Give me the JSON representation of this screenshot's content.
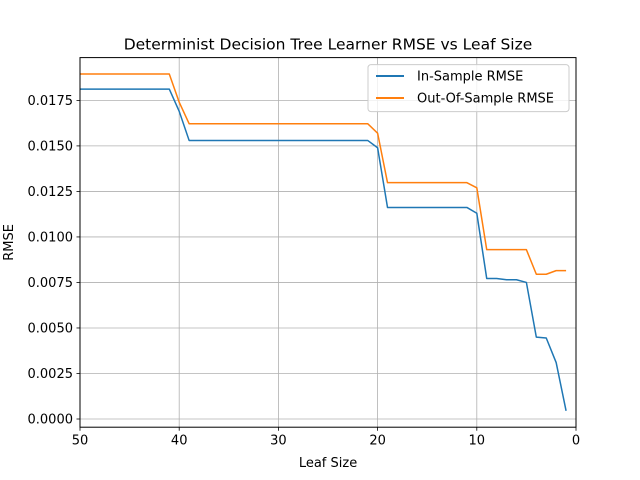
{
  "chart_data": {
    "type": "line",
    "title": "Determinist Decision Tree Learner RMSE vs Leaf Size",
    "xlabel": "Leaf Size",
    "ylabel": "RMSE",
    "xlim": [
      50,
      0
    ],
    "ylim": [
      -0.00045,
      0.01985
    ],
    "x_inverted": true,
    "grid": true,
    "legend_position": "top-right",
    "x_ticks": [
      50,
      40,
      30,
      20,
      10,
      0
    ],
    "x_tick_labels": [
      "50",
      "40",
      "30",
      "20",
      "10",
      "0"
    ],
    "y_ticks": [
      0.0,
      0.0025,
      0.005,
      0.0075,
      0.01,
      0.0125,
      0.015,
      0.0175
    ],
    "y_tick_labels": [
      "0.0000",
      "0.0025",
      "0.0050",
      "0.0075",
      "0.0100",
      "0.0125",
      "0.0150",
      "0.0175"
    ],
    "x": [
      50,
      49,
      48,
      47,
      46,
      45,
      44,
      43,
      42,
      41,
      40,
      39,
      38,
      37,
      36,
      35,
      34,
      33,
      32,
      31,
      30,
      29,
      28,
      27,
      26,
      25,
      24,
      23,
      22,
      21,
      20,
      19,
      18,
      17,
      16,
      15,
      14,
      13,
      12,
      11,
      10,
      9,
      8,
      7,
      6,
      5,
      4,
      3,
      2,
      1
    ],
    "series": [
      {
        "name": "In-Sample RMSE",
        "color": "#1f77b4",
        "values": [
          0.01812,
          0.01812,
          0.01812,
          0.01812,
          0.01812,
          0.01812,
          0.01812,
          0.01812,
          0.01812,
          0.01812,
          0.0169,
          0.0153,
          0.0153,
          0.0153,
          0.0153,
          0.0153,
          0.0153,
          0.0153,
          0.0153,
          0.0153,
          0.0153,
          0.0153,
          0.0153,
          0.0153,
          0.0153,
          0.0153,
          0.0153,
          0.0153,
          0.0153,
          0.0153,
          0.0149,
          0.01162,
          0.01162,
          0.01162,
          0.01162,
          0.01162,
          0.01162,
          0.01162,
          0.01162,
          0.01162,
          0.0113,
          0.00772,
          0.00772,
          0.00765,
          0.00765,
          0.0075,
          0.0045,
          0.00445,
          0.0031,
          0.00045
        ]
      },
      {
        "name": "Out-Of-Sample RMSE",
        "color": "#ff7f0e",
        "values": [
          0.01895,
          0.01895,
          0.01895,
          0.01895,
          0.01895,
          0.01895,
          0.01895,
          0.01895,
          0.01895,
          0.01895,
          0.0174,
          0.01622,
          0.01622,
          0.01622,
          0.01622,
          0.01622,
          0.01622,
          0.01622,
          0.01622,
          0.01622,
          0.01622,
          0.01622,
          0.01622,
          0.01622,
          0.01622,
          0.01622,
          0.01622,
          0.01622,
          0.01622,
          0.01622,
          0.0157,
          0.01298,
          0.01298,
          0.01298,
          0.01298,
          0.01298,
          0.01298,
          0.01298,
          0.01298,
          0.01298,
          0.0127,
          0.0093,
          0.0093,
          0.0093,
          0.0093,
          0.0093,
          0.00795,
          0.00795,
          0.00815,
          0.00815
        ]
      }
    ]
  }
}
